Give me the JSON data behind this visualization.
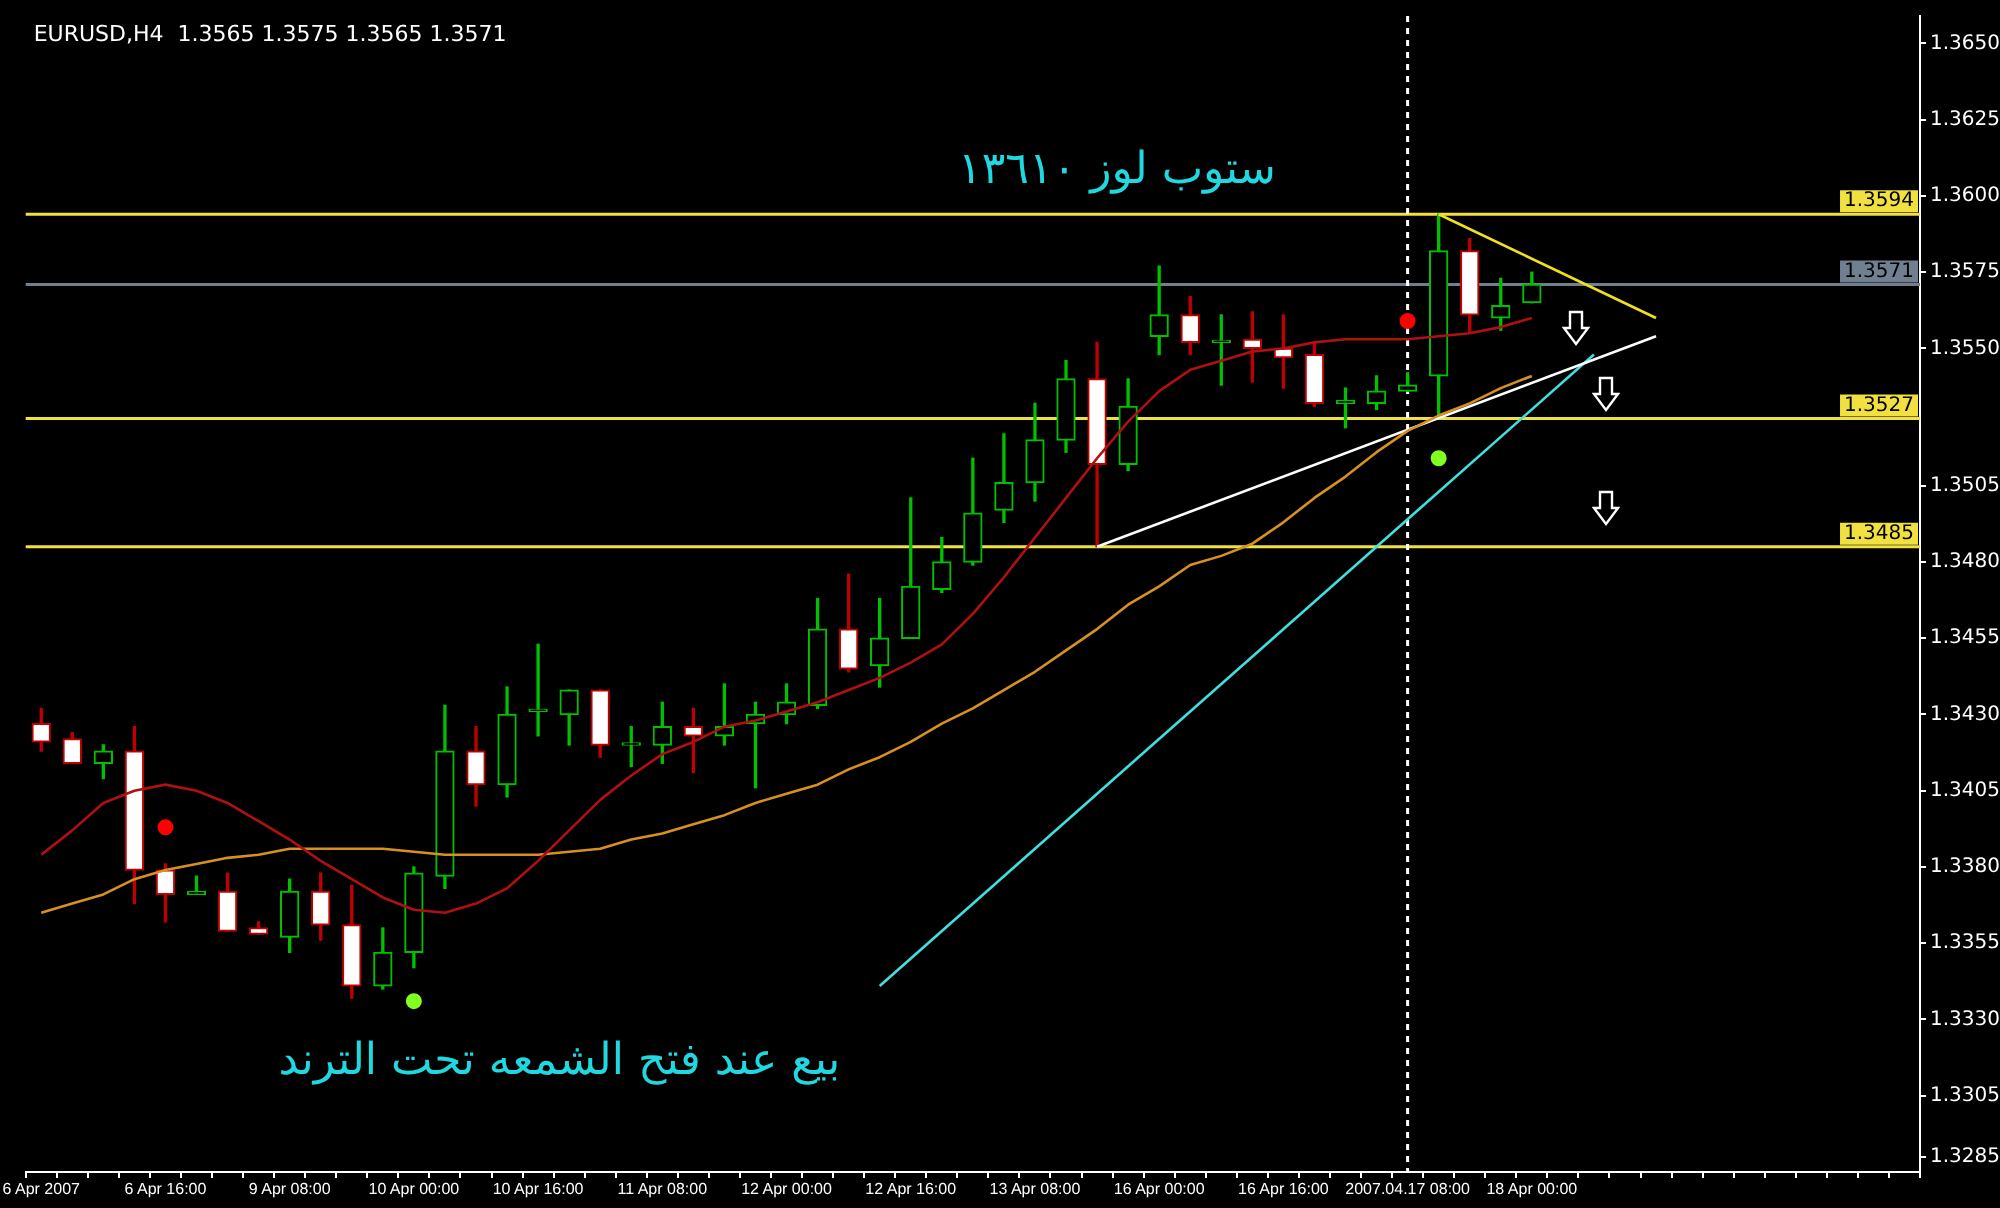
{
  "chart_data": {
    "type": "candlestick",
    "title": "EURUSD,H4  1.3565 1.3575 1.3565 1.3571",
    "categories": [
      "6 Apr 2007",
      null,
      null,
      null,
      "6 Apr 16:00",
      null,
      null,
      null,
      "9 Apr 08:00",
      null,
      null,
      null,
      "10 Apr 00:00",
      null,
      null,
      null,
      "10 Apr 16:00",
      null,
      null,
      null,
      "11 Apr 08:00",
      null,
      null,
      null,
      "12 Apr 00:00",
      null,
      null,
      null,
      "12 Apr 16:00",
      null,
      null,
      null,
      "13 Apr 08:00",
      null,
      null,
      null,
      "16 Apr 00:00",
      null,
      null,
      null,
      "16 Apr 16:00",
      null,
      null,
      null,
      "2007.04.17 08:00",
      null,
      null,
      null,
      "18 Apr 00:00",
      null,
      null,
      null,
      null,
      null,
      null,
      null,
      null,
      null,
      null,
      null,
      null
    ],
    "ohlc": [
      [
        1.3427,
        1.3432,
        1.3418,
        1.3421
      ],
      [
        1.3422,
        1.3424,
        1.3414,
        1.3414
      ],
      [
        1.3414,
        1.342,
        1.3409,
        1.3418
      ],
      [
        1.3418,
        1.3426,
        1.3368,
        1.3379
      ],
      [
        1.3379,
        1.3381,
        1.3362,
        1.3371
      ],
      [
        1.3371,
        1.3377,
        1.3371,
        1.3372
      ],
      [
        1.3372,
        1.3378,
        1.3359,
        1.3359
      ],
      [
        1.336,
        1.3362,
        1.3358,
        1.3358
      ],
      [
        1.3357,
        1.3376,
        1.3352,
        1.3372
      ],
      [
        1.3372,
        1.3378,
        1.3356,
        1.3361
      ],
      [
        1.3361,
        1.3374,
        1.3337,
        1.3341
      ],
      [
        1.3341,
        1.336,
        1.334,
        1.3352
      ],
      [
        1.3352,
        1.338,
        1.3347,
        1.3378
      ],
      [
        1.3377,
        1.3433,
        1.3373,
        1.3418
      ],
      [
        1.3418,
        1.3426,
        1.34,
        1.3407
      ],
      [
        1.3407,
        1.3439,
        1.3403,
        1.343
      ],
      [
        1.3431,
        1.3453,
        1.3423,
        1.3431
      ],
      [
        1.343,
        1.3438,
        1.342,
        1.3438
      ],
      [
        1.3438,
        1.3438,
        1.3416,
        1.342
      ],
      [
        1.342,
        1.3426,
        1.3413,
        1.342
      ],
      [
        1.342,
        1.3434,
        1.3414,
        1.3426
      ],
      [
        1.3426,
        1.3432,
        1.3411,
        1.3423
      ],
      [
        1.3423,
        1.344,
        1.342,
        1.3426
      ],
      [
        1.3427,
        1.3434,
        1.3406,
        1.343
      ],
      [
        1.343,
        1.344,
        1.3427,
        1.3434
      ],
      [
        1.3433,
        1.3468,
        1.3432,
        1.3458
      ],
      [
        1.3458,
        1.3476,
        1.3444,
        1.3445
      ],
      [
        1.3446,
        1.3468,
        1.3439,
        1.3455
      ],
      [
        1.3455,
        1.3501,
        1.3455,
        1.3472
      ],
      [
        1.3471,
        1.3488,
        1.347,
        1.348
      ],
      [
        1.348,
        1.3514,
        1.3479,
        1.3496
      ],
      [
        1.3497,
        1.3522,
        1.3493,
        1.3506
      ],
      [
        1.3506,
        1.3532,
        1.35,
        1.352
      ],
      [
        1.352,
        1.3546,
        1.3516,
        1.354
      ],
      [
        1.354,
        1.3552,
        1.3485,
        1.3512
      ],
      [
        1.3512,
        1.354,
        1.351,
        1.3531
      ],
      [
        1.3554,
        1.3577,
        1.3548,
        1.3561
      ],
      [
        1.3561,
        1.3567,
        1.3548,
        1.3552
      ],
      [
        1.3552,
        1.3561,
        1.3538,
        1.3552
      ],
      [
        1.3553,
        1.3562,
        1.3539,
        1.355
      ],
      [
        1.355,
        1.3561,
        1.3537,
        1.3547
      ],
      [
        1.3548,
        1.3552,
        1.3531,
        1.3532
      ],
      [
        1.3532,
        1.3537,
        1.3524,
        1.3533
      ],
      [
        1.3532,
        1.3541,
        1.353,
        1.3536
      ],
      [
        1.3536,
        1.3542,
        1.3536,
        1.3538
      ],
      [
        1.3541,
        1.3594,
        1.3527,
        1.3582
      ],
      [
        1.3582,
        1.3586,
        1.3555,
        1.3561
      ],
      [
        1.356,
        1.3573,
        1.3556,
        1.3564
      ],
      [
        1.3565,
        1.3575,
        1.3565,
        1.3571
      ],
      null,
      null,
      null,
      null,
      null,
      null,
      null,
      null,
      null,
      null,
      null,
      null
    ],
    "colors": [
      "#c00000",
      "#c00000",
      "#00c000",
      "#c00000",
      "#c00000",
      "#00c000",
      "#c00000",
      "#c00000",
      "#00c000",
      "#c00000",
      "#c00000",
      "#00c000",
      "#00c000",
      "#00c000",
      "#c00000",
      "#00c000",
      "#00c000",
      "#00c000",
      "#c00000",
      "#00c000",
      "#00c000",
      "#c00000",
      "#00c000",
      "#00c000",
      "#00c000",
      "#00c000",
      "#c00000",
      "#00c000",
      "#00c000",
      "#00c000",
      "#00c000",
      "#00c000",
      "#00c000",
      "#00c000",
      "#c00000",
      "#00c000",
      "#00c000",
      "#c00000",
      "#00c000",
      "#c00000",
      "#c00000",
      "#c00000",
      "#00c000",
      "#00c000",
      "#00c000",
      "#00c000",
      "#c00000",
      "#00c000",
      "#00c000",
      null,
      null,
      null,
      null,
      null,
      null,
      null,
      null,
      null,
      null,
      null,
      null
    ],
    "series": [
      {
        "type": "line",
        "color": "#b01010",
        "values": [
          1.3384,
          1.3392,
          1.3401,
          1.3405,
          1.3407,
          1.3405,
          1.3401,
          1.3395,
          1.3389,
          1.3382,
          1.3376,
          1.337,
          1.3366,
          1.3365,
          1.3368,
          1.3373,
          1.3382,
          1.3392,
          1.3402,
          1.341,
          1.3417,
          1.3421,
          1.3426,
          1.3428,
          1.3431,
          1.3434,
          1.3438,
          1.3442,
          1.3447,
          1.3453,
          1.3463,
          1.3475,
          1.3488,
          1.3501,
          1.3514,
          1.3526,
          1.3536,
          1.3543,
          1.3546,
          1.3549,
          1.355,
          1.3552,
          1.3553,
          1.3553,
          1.3553,
          1.3554,
          1.3555,
          1.3557,
          1.356,
          null,
          null,
          null,
          null,
          null,
          null,
          null,
          null,
          null,
          null,
          null,
          null
        ]
      },
      {
        "type": "line",
        "color": "#d89020",
        "values": [
          1.3365,
          1.3368,
          1.3371,
          1.3376,
          1.3379,
          1.3381,
          1.3383,
          1.3384,
          1.3386,
          1.3386,
          1.3386,
          1.3386,
          1.3385,
          1.3384,
          1.3384,
          1.3384,
          1.3384,
          1.3385,
          1.3386,
          1.3389,
          1.3391,
          1.3394,
          1.3397,
          1.3401,
          1.3404,
          1.3407,
          1.3412,
          1.3416,
          1.3421,
          1.3427,
          1.3432,
          1.3438,
          1.3444,
          1.3451,
          1.3458,
          1.3466,
          1.3472,
          1.3479,
          1.3482,
          1.3486,
          1.3493,
          1.3501,
          1.3508,
          1.3516,
          1.3523,
          1.3528,
          1.3532,
          1.3537,
          1.3541,
          null,
          null,
          null,
          null,
          null,
          null,
          null,
          null,
          null,
          null,
          null,
          null
        ]
      },
      {
        "type": "line",
        "color": "#ffffff",
        "values": [
          null,
          null,
          null,
          null,
          null,
          null,
          null,
          null,
          null,
          null,
          null,
          null,
          null,
          null,
          null,
          null,
          null,
          null,
          null,
          null,
          null,
          null,
          null,
          null,
          null,
          null,
          null,
          null,
          null,
          null,
          null,
          null,
          null,
          null,
          1.3485,
          null,
          null,
          null,
          null,
          null,
          null,
          null,
          null,
          null,
          null,
          null,
          null,
          null,
          null,
          null,
          null,
          null,
          1.3554,
          null,
          null,
          null,
          null,
          null,
          null,
          null,
          null
        ]
      },
      {
        "type": "line",
        "color": "#40e0e0",
        "values": [
          null,
          null,
          null,
          null,
          null,
          null,
          null,
          null,
          null,
          null,
          null,
          null,
          null,
          null,
          null,
          null,
          null,
          null,
          null,
          null,
          null,
          null,
          null,
          null,
          null,
          null,
          null,
          1.3341,
          null,
          null,
          null,
          null,
          null,
          null,
          null,
          null,
          null,
          null,
          null,
          null,
          null,
          null,
          null,
          null,
          null,
          null,
          null,
          null,
          null,
          null,
          1.3548,
          null,
          null,
          null,
          null,
          null,
          null,
          null,
          null,
          null,
          null
        ]
      },
      {
        "type": "line",
        "color": "#f0e020",
        "values": [
          null,
          null,
          null,
          null,
          null,
          null,
          null,
          null,
          null,
          null,
          null,
          null,
          null,
          null,
          null,
          null,
          null,
          null,
          null,
          null,
          null,
          null,
          null,
          null,
          null,
          null,
          null,
          null,
          null,
          null,
          null,
          null,
          null,
          null,
          null,
          null,
          null,
          null,
          null,
          null,
          null,
          null,
          null,
          null,
          null,
          1.3594,
          null,
          null,
          null,
          null,
          null,
          null,
          1.356,
          null,
          null,
          null,
          null,
          null,
          null,
          null,
          null
        ]
      },
      {
        "type": "scatter",
        "color": "#ff0000",
        "values": [
          null,
          null,
          null,
          null,
          1.3393,
          null,
          null,
          null,
          null,
          null,
          null,
          null,
          null,
          null,
          null,
          null,
          null,
          null,
          null,
          null,
          null,
          null,
          null,
          null,
          null,
          null,
          null,
          null,
          null,
          null,
          null,
          null,
          null,
          null,
          null,
          null,
          null,
          null,
          null,
          null,
          null,
          null,
          null,
          null,
          1.3559,
          null,
          null,
          null,
          null,
          null,
          null,
          null,
          null,
          null,
          null,
          null,
          null,
          null,
          null,
          null,
          null
        ]
      },
      {
        "type": "scatter",
        "color": "#80ff20",
        "values": [
          null,
          null,
          null,
          null,
          null,
          null,
          null,
          null,
          null,
          null,
          null,
          null,
          1.3336,
          null,
          null,
          null,
          null,
          null,
          null,
          null,
          null,
          null,
          null,
          null,
          null,
          null,
          null,
          null,
          null,
          null,
          null,
          null,
          null,
          null,
          null,
          null,
          null,
          null,
          null,
          null,
          null,
          null,
          null,
          null,
          null,
          1.3514,
          null,
          null,
          null,
          null,
          null,
          null,
          null,
          null,
          null,
          null,
          null,
          null,
          null,
          null,
          null
        ]
      }
    ],
    "ref_lines": [
      {
        "axis": "y",
        "value": 1.3594,
        "label": "1.3594",
        "color": "#f0e040"
      },
      {
        "axis": "y",
        "value": 1.3571,
        "label": "1.3571",
        "color": "#708090"
      },
      {
        "axis": "y",
        "value": 1.3527,
        "label": "1.3527",
        "color": "#f0e040"
      },
      {
        "axis": "y",
        "value": 1.3485,
        "label": "1.3485",
        "color": "#f0e040"
      },
      {
        "axis": "x",
        "value": "2007.04.17 08:00",
        "color": "#ffffff",
        "line_style": "dashed"
      }
    ],
    "annotations": [
      "ستوب لوز ١٣٦١٠",
      "بيع عند فتح الشمعه تحت الترند"
    ],
    "ylim": [
      1.328,
      1.3659
    ],
    "yticks": [
      {
        "value": 1.365,
        "label": "1.3650"
      },
      1.3625,
      {
        "value": 1.36,
        "label": "1.3600"
      },
      1.3575,
      {
        "value": 1.355,
        "label": "1.3550"
      },
      1.3505,
      {
        "value": 1.348,
        "label": "1.3480"
      },
      1.3455,
      {
        "value": 1.343,
        "label": "1.3430"
      },
      1.3405,
      {
        "value": 1.338,
        "label": "1.3380"
      },
      1.3355,
      {
        "value": 1.333,
        "label": "1.3330"
      },
      1.3305,
      1.3285
    ],
    "grid": false,
    "legend": false
  }
}
